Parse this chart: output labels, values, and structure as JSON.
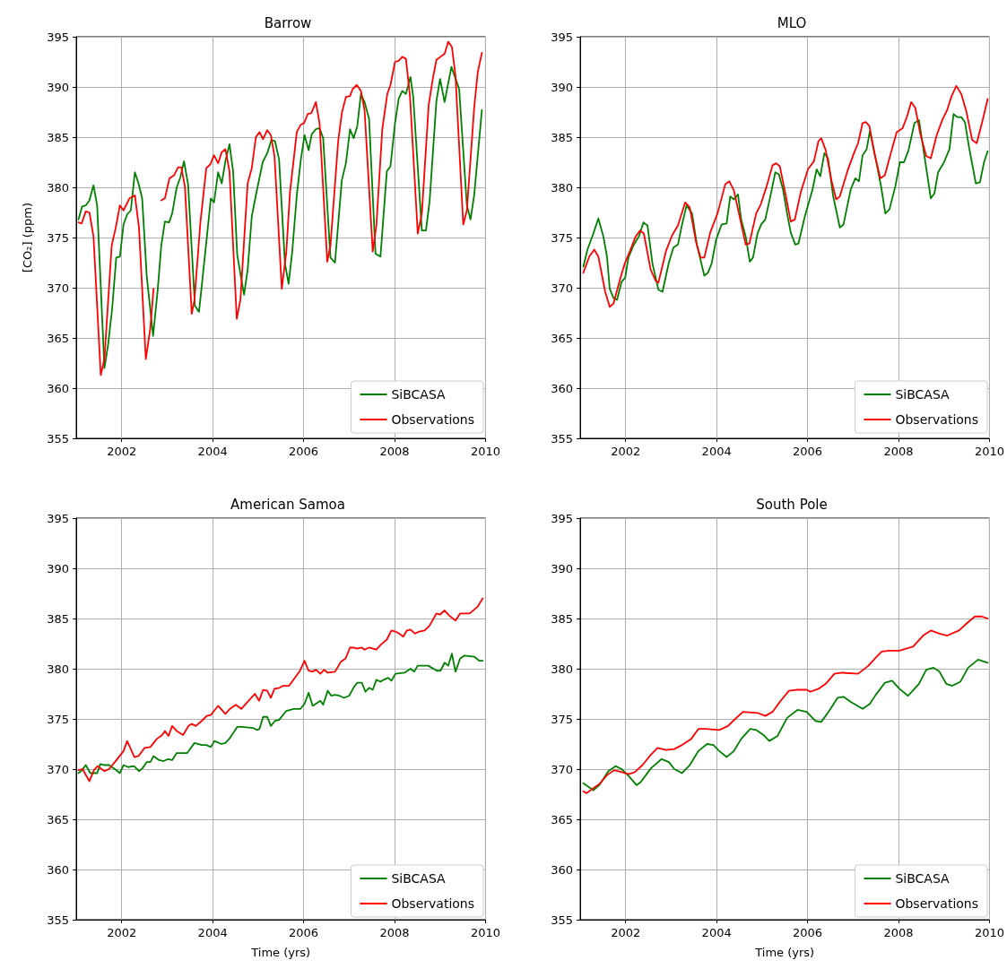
{
  "chart_data": [
    {
      "type": "line",
      "title": "Barrow",
      "ylabel": "[CO₂] (ppm)",
      "xlim": [
        2001,
        2010
      ],
      "xticks": [
        2002,
        2004,
        2006,
        2008,
        2010
      ],
      "ylim": [
        355,
        395
      ],
      "yticks": [
        355,
        360,
        365,
        370,
        375,
        380,
        385,
        390,
        395
      ],
      "grid": true,
      "legend": "bottom right",
      "series": [
        {
          "name": "SiBCASA",
          "color": "#008000",
          "x": [
            2001.05,
            2001.13,
            2001.21,
            2001.29,
            2001.38,
            2001.46,
            2001.62,
            2001.7,
            2001.79,
            2001.88,
            2001.96,
            2002.04,
            2002.12,
            2002.2,
            2002.29,
            2002.37,
            2002.45,
            2002.55,
            2002.69,
            2002.79,
            2002.87,
            2002.95,
            2003.04,
            2003.11,
            2003.21,
            2003.29,
            2003.37,
            2003.46,
            2003.61,
            2003.7,
            2003.86,
            2003.96,
            2004.03,
            2004.12,
            2004.2,
            2004.28,
            2004.37,
            2004.45,
            2004.54,
            2004.69,
            2004.77,
            2004.86,
            2004.95,
            2005.1,
            2005.2,
            2005.29,
            2005.37,
            2005.46,
            2005.59,
            2005.67,
            2005.75,
            2005.85,
            2005.94,
            2006.02,
            2006.11,
            2006.18,
            2006.27,
            2006.35,
            2006.43,
            2006.59,
            2006.69,
            2006.84,
            2006.93,
            2007.02,
            2007.1,
            2007.18,
            2007.26,
            2007.34,
            2007.44,
            2007.58,
            2007.69,
            2007.83,
            2007.91,
            2008.01,
            2008.09,
            2008.17,
            2008.25,
            2008.35,
            2008.41,
            2008.6,
            2008.69,
            2008.77,
            2008.92,
            2009.0,
            2009.1,
            2009.25,
            2009.42,
            2009.59,
            2009.67,
            2009.75,
            2009.92
          ],
          "values": [
            376.8,
            378.1,
            378.2,
            378.7,
            380.2,
            378.2,
            362.0,
            364.3,
            367.9,
            373.0,
            373.1,
            376.3,
            377.3,
            377.7,
            381.5,
            380.4,
            378.9,
            371.2,
            365.2,
            369.7,
            374.2,
            376.6,
            376.5,
            377.4,
            380.0,
            381.0,
            382.6,
            380.3,
            368.2,
            367.6,
            374.5,
            378.9,
            378.5,
            381.5,
            380.4,
            382.6,
            384.3,
            381.6,
            373.3,
            369.3,
            371.8,
            377.1,
            379.2,
            382.5,
            383.4,
            384.7,
            384.6,
            382.8,
            372.4,
            370.4,
            373.6,
            379.2,
            382.8,
            385.2,
            383.7,
            385.3,
            385.8,
            385.9,
            384.9,
            373.0,
            372.5,
            380.7,
            382.4,
            385.8,
            384.9,
            386.1,
            389.3,
            388.5,
            386.8,
            373.4,
            373.1,
            381.6,
            382.1,
            386.4,
            388.8,
            389.6,
            389.3,
            391.0,
            389.0,
            375.7,
            375.7,
            378.6,
            388.6,
            390.8,
            388.5,
            392.0,
            389.8,
            378.2,
            376.8,
            379.2,
            387.7
          ]
        },
        {
          "name": "Observations",
          "color": "#ff0000",
          "x": [
            2001.05,
            2001.12,
            2001.21,
            2001.29,
            2001.38,
            2001.54,
            2001.62,
            2001.78,
            2001.87,
            2001.96,
            2002.04,
            2002.17,
            2002.29,
            2002.38,
            2002.53,
            2002.63,
            2002.7,
            2002.78,
            2002.87,
            2002.95,
            2003.05,
            2003.15,
            2003.24,
            2003.31,
            2003.39,
            2003.54,
            2003.6,
            2003.73,
            2003.86,
            2003.95,
            2004.03,
            2004.12,
            2004.2,
            2004.28,
            2004.37,
            2004.53,
            2004.61,
            2004.77,
            2004.86,
            2004.95,
            2005.03,
            2005.11,
            2005.2,
            2005.28,
            2005.36,
            2005.52,
            2005.62,
            2005.7,
            2005.85,
            2005.93,
            2006.01,
            2006.09,
            2006.17,
            2006.27,
            2006.35,
            2006.52,
            2006.59,
            2006.76,
            2006.84,
            2006.93,
            2007.02,
            2007.08,
            2007.17,
            2007.26,
            2007.34,
            2007.52,
            2007.6,
            2007.73,
            2007.84,
            2007.91,
            2008.01,
            2008.09,
            2008.17,
            2008.25,
            2008.34,
            2008.51,
            2008.6,
            2008.75,
            2008.84,
            2008.92,
            2009.01,
            2009.1,
            2009.18,
            2009.26,
            2009.34,
            2009.51,
            2009.59,
            2009.75,
            2009.83,
            2009.92
          ],
          "values": [
            376.5,
            376.4,
            377.6,
            377.5,
            375.1,
            361.3,
            362.9,
            374.2,
            376.0,
            378.2,
            377.7,
            378.9,
            379.2,
            376.0,
            362.9,
            366.0,
            369.9,
            null,
            378.7,
            378.9,
            380.9,
            381.2,
            382.0,
            382.0,
            380.1,
            367.4,
            368.8,
            376.5,
            381.9,
            382.3,
            383.2,
            382.4,
            383.5,
            383.8,
            381.6,
            366.9,
            368.8,
            380.4,
            381.9,
            385.0,
            385.5,
            384.8,
            385.7,
            385.2,
            383.1,
            369.9,
            373.6,
            379.5,
            385.5,
            386.2,
            386.4,
            387.3,
            387.4,
            388.5,
            386.4,
            372.6,
            374.2,
            384.6,
            387.4,
            389.0,
            389.1,
            389.8,
            390.2,
            389.6,
            387.7,
            373.6,
            376.2,
            385.8,
            389.3,
            390.2,
            392.5,
            392.6,
            393.0,
            392.8,
            389.0,
            375.4,
            377.4,
            388.2,
            390.8,
            392.7,
            393.0,
            393.3,
            394.5,
            394.0,
            391.1,
            376.3,
            377.7,
            387.9,
            391.5,
            393.4
          ]
        }
      ]
    },
    {
      "type": "line",
      "title": "MLO",
      "xlim": [
        2001,
        2010
      ],
      "xticks": [
        2002,
        2004,
        2006,
        2008,
        2010
      ],
      "ylim": [
        355,
        395
      ],
      "yticks": [
        355,
        360,
        365,
        370,
        375,
        380,
        385,
        390,
        395
      ],
      "grid": true,
      "legend": "bottom right",
      "series": [
        {
          "name": "SiBCASA",
          "color": "#008000",
          "x": [
            2001.07,
            2001.16,
            2001.29,
            2001.4,
            2001.51,
            2001.59,
            2001.65,
            2001.73,
            2001.81,
            2001.91,
            2001.99,
            2002.06,
            2002.17,
            2002.3,
            2002.39,
            2002.48,
            2002.59,
            2002.72,
            2002.81,
            2002.95,
            2003.05,
            2003.15,
            2003.24,
            2003.34,
            2003.46,
            2003.57,
            2003.73,
            2003.81,
            2003.89,
            2003.99,
            2004.11,
            2004.22,
            2004.3,
            2004.38,
            2004.47,
            2004.54,
            2004.64,
            2004.73,
            2004.8,
            2004.9,
            2004.98,
            2005.07,
            2005.2,
            2005.29,
            2005.37,
            2005.46,
            2005.55,
            2005.63,
            2005.73,
            2005.8,
            2005.94,
            2006.11,
            2006.2,
            2006.28,
            2006.37,
            2006.45,
            2006.56,
            2006.71,
            2006.79,
            2006.95,
            2007.05,
            2007.13,
            2007.21,
            2007.3,
            2007.37,
            2007.5,
            2007.62,
            2007.71,
            2007.8,
            2007.93,
            2008.03,
            2008.12,
            2008.22,
            2008.35,
            2008.45,
            2008.58,
            2008.71,
            2008.79,
            2008.87,
            2009.0,
            2009.12,
            2009.21,
            2009.29,
            2009.38,
            2009.46,
            2009.55,
            2009.7,
            2009.79,
            2009.88,
            2009.96
          ],
          "values": [
            372.1,
            373.8,
            375.4,
            376.9,
            375.1,
            373.1,
            369.9,
            369.0,
            368.8,
            370.6,
            371.0,
            373.0,
            374.2,
            375.2,
            376.5,
            376.2,
            372.4,
            369.8,
            369.6,
            372.5,
            374.0,
            374.3,
            376.3,
            378.2,
            377.4,
            374.2,
            371.2,
            371.5,
            372.4,
            374.8,
            376.3,
            376.4,
            379.1,
            378.8,
            379.3,
            376.8,
            375.1,
            372.6,
            373.0,
            375.4,
            376.3,
            376.8,
            379.5,
            381.5,
            381.3,
            379.8,
            377.4,
            375.5,
            374.3,
            374.4,
            377.1,
            379.8,
            381.8,
            381.1,
            383.4,
            382.9,
            379.2,
            376.0,
            376.3,
            379.8,
            380.9,
            380.6,
            383.2,
            383.8,
            385.6,
            382.8,
            380.0,
            377.4,
            377.8,
            380.1,
            382.5,
            382.5,
            383.7,
            386.4,
            386.7,
            382.8,
            378.9,
            379.4,
            381.5,
            382.5,
            383.8,
            387.3,
            387.0,
            387.0,
            386.5,
            384.0,
            380.4,
            380.5,
            382.5,
            383.6
          ]
        },
        {
          "name": "Observations",
          "color": "#ff0000",
          "x": [
            2001.07,
            2001.2,
            2001.31,
            2001.4,
            2001.55,
            2001.65,
            2001.73,
            2001.88,
            2001.98,
            2002.09,
            2002.22,
            2002.32,
            2002.4,
            2002.55,
            2002.66,
            2002.72,
            2002.89,
            2003.02,
            2003.15,
            2003.31,
            2003.41,
            2003.55,
            2003.65,
            2003.73,
            2003.86,
            2004.02,
            2004.19,
            2004.28,
            2004.38,
            2004.54,
            2004.64,
            2004.72,
            2004.87,
            2004.97,
            2005.1,
            2005.23,
            2005.31,
            2005.39,
            2005.52,
            2005.63,
            2005.72,
            2005.85,
            2006.01,
            2006.14,
            2006.24,
            2006.3,
            2006.4,
            2006.53,
            2006.63,
            2006.71,
            2006.89,
            2007.02,
            2007.11,
            2007.21,
            2007.28,
            2007.36,
            2007.47,
            2007.6,
            2007.7,
            2007.83,
            2007.96,
            2008.09,
            2008.19,
            2008.28,
            2008.37,
            2008.48,
            2008.61,
            2008.71,
            2008.84,
            2008.97,
            2009.07,
            2009.16,
            2009.27,
            2009.38,
            2009.49,
            2009.62,
            2009.72,
            2009.85,
            2009.96
          ],
          "values": [
            371.5,
            373.1,
            373.8,
            373.1,
            369.6,
            368.1,
            368.4,
            370.9,
            372.4,
            373.6,
            375.1,
            375.7,
            375.4,
            371.8,
            370.7,
            370.5,
            373.7,
            375.2,
            376.2,
            378.5,
            378.0,
            374.5,
            373.0,
            373.0,
            375.5,
            377.4,
            380.3,
            380.6,
            379.7,
            376.4,
            374.3,
            374.4,
            377.4,
            378.3,
            380.1,
            382.2,
            382.4,
            382.1,
            379.2,
            376.6,
            376.8,
            379.5,
            381.8,
            382.6,
            384.6,
            384.9,
            383.7,
            380.6,
            378.8,
            379.1,
            381.8,
            383.4,
            384.4,
            386.4,
            386.5,
            386.1,
            383.4,
            380.9,
            381.2,
            383.4,
            385.5,
            385.9,
            387.1,
            388.5,
            387.9,
            385.3,
            383.1,
            382.9,
            385.2,
            386.8,
            387.7,
            389.0,
            390.1,
            389.3,
            387.6,
            384.7,
            384.4,
            386.7,
            388.8
          ]
        }
      ]
    },
    {
      "type": "line",
      "title": "American Samoa",
      "xlabel": "Time (yrs)",
      "xlim": [
        2001,
        2010
      ],
      "xticks": [
        2002,
        2004,
        2006,
        2008,
        2010
      ],
      "ylim": [
        355,
        395
      ],
      "yticks": [
        355,
        360,
        365,
        370,
        375,
        380,
        385,
        390,
        395
      ],
      "grid": true,
      "legend": "bottom right",
      "series": [
        {
          "name": "SiBCASA",
          "color": "#008000",
          "x": [
            2001.05,
            2001.13,
            2001.21,
            2001.31,
            2001.46,
            2001.53,
            2001.62,
            2001.72,
            2001.85,
            2001.96,
            2002.04,
            2002.14,
            2002.27,
            2002.38,
            2002.46,
            2002.55,
            2002.63,
            2002.7,
            2002.82,
            2002.92,
            2003.02,
            2003.11,
            2003.21,
            2003.44,
            2003.6,
            2003.76,
            2003.86,
            2003.96,
            2004.04,
            2004.19,
            2004.28,
            2004.38,
            2004.54,
            2004.64,
            2004.89,
            2004.97,
            2005.03,
            2005.11,
            2005.2,
            2005.28,
            2005.37,
            2005.46,
            2005.62,
            2005.78,
            2005.93,
            2006.02,
            2006.11,
            2006.2,
            2006.37,
            2006.43,
            2006.53,
            2006.61,
            2006.69,
            2006.79,
            2006.89,
            2007.0,
            2007.11,
            2007.18,
            2007.28,
            2007.36,
            2007.44,
            2007.52,
            2007.6,
            2007.69,
            2007.76,
            2007.86,
            2007.93,
            2008.02,
            2008.22,
            2008.35,
            2008.43,
            2008.51,
            2008.74,
            2008.93,
            2009.01,
            2009.1,
            2009.18,
            2009.26,
            2009.34,
            2009.44,
            2009.53,
            2009.75,
            2009.86,
            2009.94
          ],
          "values": [
            369.6,
            369.9,
            370.4,
            369.6,
            369.6,
            370.5,
            370.4,
            370.4,
            370.0,
            369.6,
            370.4,
            370.2,
            370.3,
            369.8,
            370.1,
            370.7,
            370.7,
            371.3,
            370.9,
            370.8,
            371.0,
            370.9,
            371.6,
            371.6,
            372.6,
            372.4,
            372.4,
            372.2,
            372.8,
            372.5,
            372.6,
            373.1,
            374.2,
            374.2,
            374.1,
            373.9,
            374.0,
            375.2,
            375.2,
            374.3,
            374.8,
            374.9,
            375.8,
            376.0,
            376.0,
            376.5,
            377.6,
            376.3,
            376.8,
            376.4,
            377.8,
            377.3,
            377.4,
            377.3,
            377.1,
            377.3,
            378.2,
            378.6,
            378.6,
            377.7,
            378.1,
            377.9,
            378.9,
            378.7,
            378.9,
            379.1,
            378.8,
            379.5,
            379.6,
            380.0,
            379.7,
            380.3,
            380.3,
            379.8,
            379.8,
            380.6,
            380.3,
            381.5,
            379.7,
            381.0,
            381.3,
            381.2,
            380.8,
            380.8
          ]
        },
        {
          "name": "Observations",
          "color": "#ff0000",
          "x": [
            2001.05,
            2001.14,
            2001.29,
            2001.39,
            2001.47,
            2001.62,
            2001.72,
            2001.85,
            2002.04,
            2002.12,
            2002.28,
            2002.37,
            2002.5,
            2002.63,
            2002.77,
            2002.89,
            2002.95,
            2003.03,
            2003.11,
            2003.21,
            2003.35,
            2003.47,
            2003.54,
            2003.63,
            2003.76,
            2003.87,
            2003.96,
            2004.12,
            2004.28,
            2004.38,
            2004.51,
            2004.63,
            2004.77,
            2004.93,
            2005.02,
            2005.11,
            2005.2,
            2005.28,
            2005.36,
            2005.47,
            2005.55,
            2005.68,
            2005.81,
            2005.92,
            2006.02,
            2006.11,
            2006.2,
            2006.27,
            2006.37,
            2006.45,
            2006.53,
            2006.69,
            2006.82,
            2006.92,
            2007.02,
            2007.1,
            2007.18,
            2007.28,
            2007.34,
            2007.44,
            2007.6,
            2007.7,
            2007.83,
            2007.93,
            2008.02,
            2008.1,
            2008.19,
            2008.27,
            2008.35,
            2008.45,
            2008.54,
            2008.66,
            2008.77,
            2008.92,
            2009.0,
            2009.1,
            2009.2,
            2009.34,
            2009.44,
            2009.65,
            2009.83,
            2009.94
          ],
          "values": [
            369.9,
            370.0,
            368.8,
            369.9,
            370.3,
            369.8,
            370.0,
            370.7,
            371.8,
            372.8,
            371.2,
            371.3,
            372.1,
            372.2,
            373.0,
            373.4,
            373.8,
            373.3,
            374.3,
            373.8,
            373.4,
            374.3,
            374.5,
            374.3,
            374.8,
            375.3,
            375.4,
            376.3,
            375.5,
            376.0,
            376.4,
            376.0,
            376.7,
            377.5,
            376.8,
            377.9,
            377.8,
            377.1,
            378.0,
            378.1,
            378.3,
            378.3,
            379.1,
            379.8,
            380.8,
            379.8,
            379.7,
            379.9,
            379.5,
            379.9,
            379.6,
            379.7,
            380.7,
            381.0,
            382.1,
            382.1,
            382.0,
            382.1,
            381.9,
            382.1,
            381.9,
            382.4,
            382.9,
            383.8,
            383.7,
            383.5,
            383.2,
            383.8,
            383.9,
            383.5,
            383.7,
            383.8,
            384.3,
            385.5,
            385.4,
            385.8,
            385.3,
            384.8,
            385.5,
            385.5,
            386.2,
            387.0
          ]
        }
      ]
    },
    {
      "type": "line",
      "title": "South Pole",
      "xlabel": "Time (yrs)",
      "xlim": [
        2001,
        2010
      ],
      "xticks": [
        2002,
        2004,
        2006,
        2008,
        2010
      ],
      "ylim": [
        355,
        395
      ],
      "yticks": [
        355,
        360,
        365,
        370,
        375,
        380,
        385,
        390,
        395
      ],
      "grid": true,
      "legend": "bottom right",
      "series": [
        {
          "name": "SiBCASA",
          "color": "#008000",
          "x": [
            2001.07,
            2001.16,
            2001.29,
            2001.42,
            2001.62,
            2001.78,
            2001.91,
            2002.07,
            2002.24,
            2002.33,
            2002.56,
            2002.79,
            2002.95,
            2003.07,
            2003.24,
            2003.41,
            2003.6,
            2003.79,
            2003.93,
            2004.06,
            2004.22,
            2004.38,
            2004.54,
            2004.74,
            2004.87,
            2005.03,
            2005.16,
            2005.34,
            2005.55,
            2005.78,
            2005.98,
            2006.17,
            2006.3,
            2006.46,
            2006.66,
            2006.79,
            2006.95,
            2007.21,
            2007.37,
            2007.5,
            2007.7,
            2007.86,
            2008.02,
            2008.21,
            2008.45,
            2008.61,
            2008.77,
            2008.9,
            2009.05,
            2009.18,
            2009.36,
            2009.53,
            2009.75,
            2009.96
          ],
          "values": [
            368.6,
            368.3,
            367.9,
            368.4,
            369.8,
            370.3,
            370.0,
            369.3,
            368.4,
            368.7,
            370.1,
            371.0,
            370.7,
            370.0,
            369.6,
            370.4,
            371.8,
            372.5,
            372.4,
            371.8,
            371.2,
            371.8,
            373.0,
            374.0,
            373.9,
            373.4,
            372.8,
            373.3,
            375.1,
            375.9,
            375.7,
            374.8,
            374.7,
            375.7,
            377.1,
            377.2,
            376.7,
            376.0,
            376.5,
            377.4,
            378.6,
            378.8,
            378.0,
            377.3,
            378.5,
            379.9,
            380.1,
            379.7,
            378.5,
            378.3,
            378.7,
            380.1,
            380.9,
            380.6
          ]
        },
        {
          "name": "Observations",
          "color": "#ff0000",
          "x": [
            2001.07,
            2001.14,
            2001.29,
            2001.42,
            2001.59,
            2001.75,
            2001.91,
            2002.07,
            2002.2,
            2002.37,
            2002.53,
            2002.7,
            2002.89,
            2003.07,
            2003.24,
            2003.44,
            2003.6,
            2003.76,
            2004.06,
            2004.25,
            2004.41,
            2004.58,
            2004.9,
            2005.07,
            2005.23,
            2005.39,
            2005.59,
            2005.75,
            2005.98,
            2006.06,
            2006.24,
            2006.4,
            2006.59,
            2006.76,
            2007.11,
            2007.34,
            2007.5,
            2007.63,
            2007.8,
            2008.02,
            2008.32,
            2008.54,
            2008.71,
            2008.9,
            2009.07,
            2009.33,
            2009.52,
            2009.68,
            2009.83,
            2009.96
          ],
          "values": [
            367.8,
            367.6,
            368.1,
            368.5,
            369.4,
            369.9,
            369.7,
            369.5,
            369.7,
            370.4,
            371.3,
            372.1,
            371.9,
            372.0,
            372.4,
            373.0,
            374.0,
            374.0,
            373.9,
            374.3,
            375.0,
            375.7,
            375.6,
            375.3,
            375.7,
            376.7,
            377.8,
            377.9,
            377.9,
            377.7,
            378.0,
            378.5,
            379.5,
            379.6,
            379.5,
            380.3,
            381.1,
            381.7,
            381.8,
            381.8,
            382.2,
            383.3,
            383.8,
            383.5,
            383.3,
            383.8,
            384.6,
            385.2,
            385.2,
            385.0
          ]
        }
      ]
    }
  ]
}
